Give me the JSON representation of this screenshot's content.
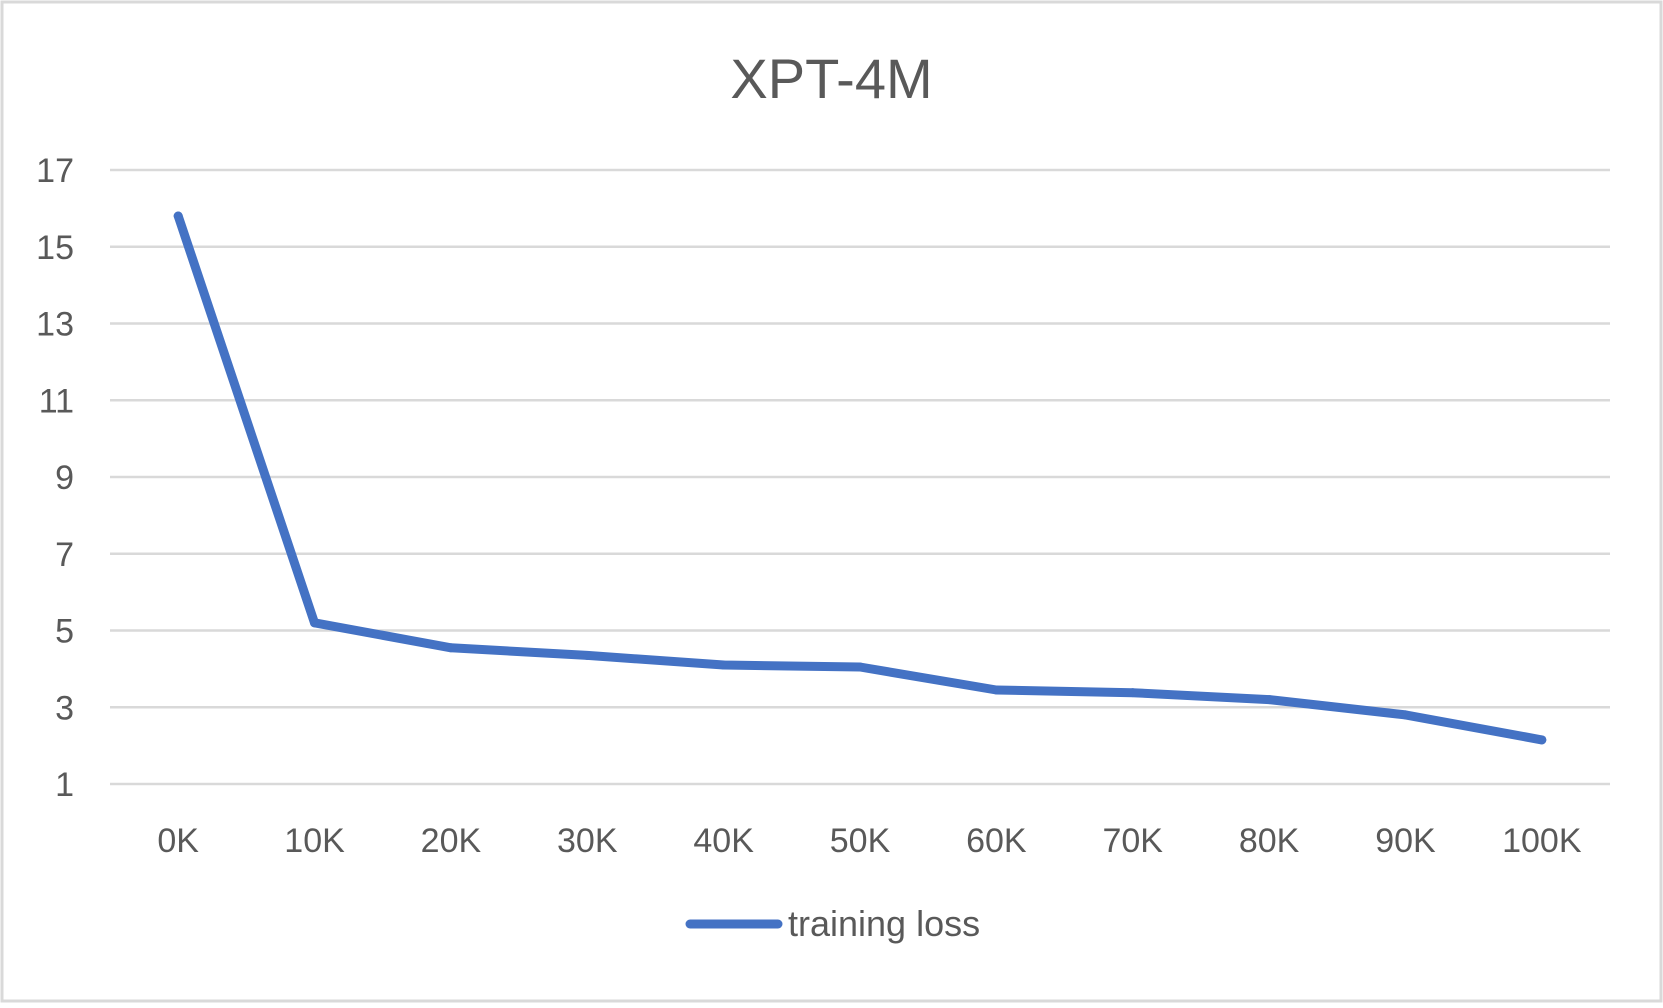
{
  "chart_data": {
    "type": "line",
    "title": "XPT-4M",
    "xlabel": "",
    "ylabel": "",
    "categories": [
      "0K",
      "10K",
      "20K",
      "30K",
      "40K",
      "50K",
      "60K",
      "70K",
      "80K",
      "90K",
      "100K"
    ],
    "ylim": [
      1,
      17
    ],
    "yticks": [
      1,
      3,
      5,
      7,
      9,
      11,
      13,
      15,
      17
    ],
    "grid": true,
    "legend_position": "bottom",
    "series": [
      {
        "name": "training loss",
        "color": "#4472c4",
        "values": [
          15.8,
          5.2,
          4.55,
          4.35,
          4.1,
          4.05,
          3.45,
          3.38,
          3.2,
          2.8,
          2.15
        ]
      }
    ]
  }
}
